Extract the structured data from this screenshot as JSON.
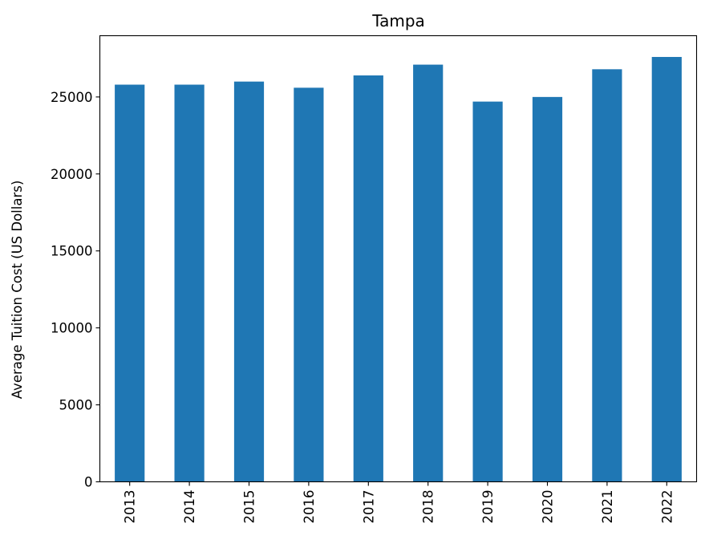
{
  "chart_data": {
    "type": "bar",
    "title": "Tampa",
    "xlabel": "",
    "ylabel": "Average Tuition Cost (US Dollars)",
    "categories": [
      "2013",
      "2014",
      "2015",
      "2016",
      "2017",
      "2018",
      "2019",
      "2020",
      "2021",
      "2022"
    ],
    "values": [
      25800,
      25800,
      26000,
      25600,
      26400,
      27100,
      24700,
      25000,
      26800,
      27600
    ],
    "ylim": [
      0,
      28980
    ],
    "yticks": [
      0,
      5000,
      10000,
      15000,
      20000,
      25000
    ],
    "grid": false,
    "bar_color": "#1f77b4"
  }
}
